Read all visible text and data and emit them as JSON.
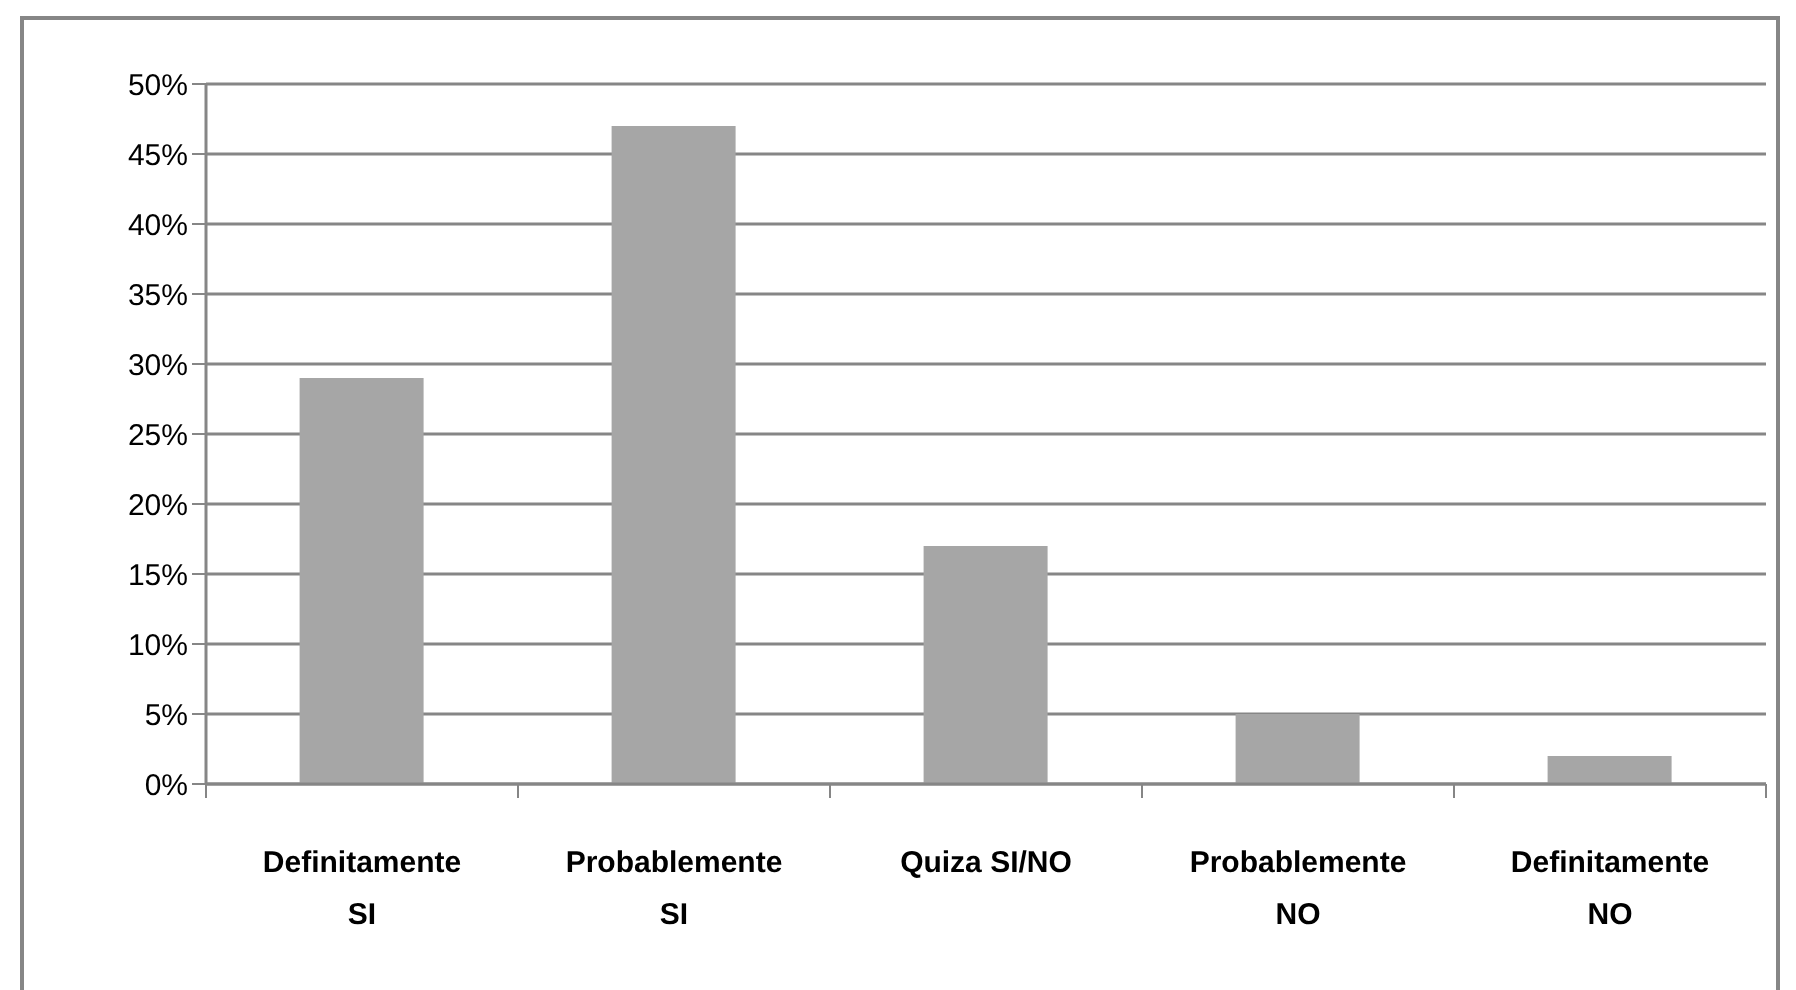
{
  "chart_data": {
    "type": "bar",
    "categories": [
      "Definitamente SI",
      "Probablemente SI",
      "Quiza SI/NO",
      "Probablemente NO",
      "Definitamente NO"
    ],
    "values": [
      29,
      47,
      17,
      5,
      2
    ],
    "color": "#a6a6a6",
    "ylim": [
      0,
      50
    ],
    "yticks": [
      {
        "value": 0,
        "label": "0%"
      },
      {
        "value": 5,
        "label": "5%"
      },
      {
        "value": 10,
        "label": "10%"
      },
      {
        "value": 15,
        "label": "15%"
      },
      {
        "value": 20,
        "label": "20%"
      },
      {
        "value": 25,
        "label": "25%"
      },
      {
        "value": 30,
        "label": "30%"
      },
      {
        "value": 35,
        "label": "35%"
      },
      {
        "value": 40,
        "label": "40%"
      },
      {
        "value": 45,
        "label": "45%"
      },
      {
        "value": 50,
        "label": "50%"
      }
    ],
    "grid": "y"
  }
}
